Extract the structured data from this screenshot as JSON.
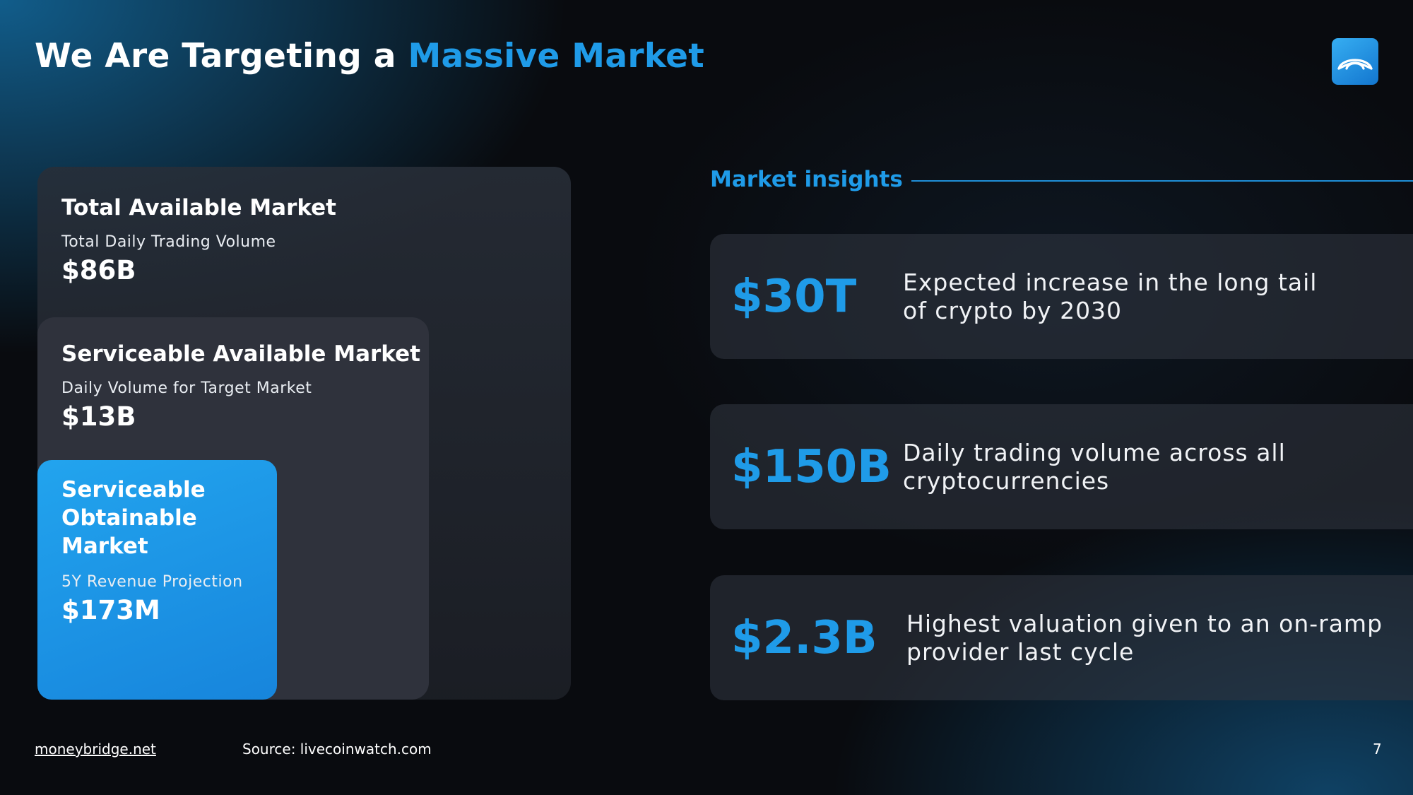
{
  "title": {
    "prefix": "We Are Targeting a",
    "accent": "Massive Market"
  },
  "logo": {
    "icon": "bridge-arch-icon",
    "color": "#1f9be8"
  },
  "markets": {
    "tam": {
      "title": "Total Available Market",
      "label": "Total Daily Trading Volume",
      "value": "$86B"
    },
    "sam": {
      "title": "Serviceable Available Market",
      "label": "Daily Volume for Target Market",
      "value": "$13B"
    },
    "som": {
      "title_lines": [
        "Serviceable",
        "Obtainable",
        "Market"
      ],
      "label": "5Y Revenue Projection",
      "value": "$173M"
    }
  },
  "insights": {
    "heading": "Market insights",
    "items": [
      {
        "value": "$30T",
        "text_lines": [
          "Expected increase in the long tail",
          "of crypto by 2030"
        ]
      },
      {
        "value": "$150B",
        "text_lines": [
          "Daily trading volume across all",
          "cryptocurrencies"
        ]
      },
      {
        "value": "$2.3B",
        "text_lines": [
          "Highest valuation given to an on-ramp",
          "provider last cycle"
        ]
      }
    ]
  },
  "footer": {
    "website": "moneybridge.net",
    "source": "Source: livecoinwatch.com",
    "page_number": "7"
  },
  "colors": {
    "accent": "#1f9be8",
    "background": "#090b0f",
    "som_box": "#1a92e4"
  }
}
